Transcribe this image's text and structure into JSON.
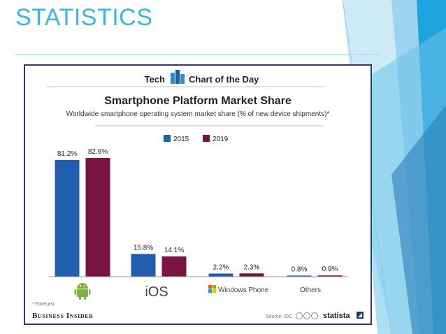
{
  "slide": {
    "title": "STATISTICS"
  },
  "chart_header": {
    "brand_left": "Tech",
    "brand_right": "Chart of the Day",
    "footnote": "* Forecast",
    "publisher": "Business Insider",
    "source": "Source: IDC",
    "logo": "statista"
  },
  "colors": {
    "s2015": "#1f5fae",
    "s2019": "#7b1440",
    "accent": "#38b6e6"
  },
  "chart_data": {
    "type": "bar",
    "title": "Smartphone Platform Market Share",
    "subtitle": "Worldwide smartphone operating system market share (% of new device shipments)*",
    "categories": [
      "",
      "iOS",
      "Windows Phone",
      "Others"
    ],
    "category_icons": [
      "android-icon",
      null,
      "windows-icon",
      null
    ],
    "series": [
      {
        "name": "2015",
        "values": [
          81.2,
          15.8,
          2.2,
          0.8
        ],
        "labels": [
          "81.2%",
          "15.8%",
          "2.2%",
          "0.8%"
        ]
      },
      {
        "name": "2019",
        "values": [
          82.6,
          14.1,
          2.3,
          0.9
        ],
        "labels": [
          "82.6%",
          "14.1%",
          "2.3%",
          "0.9%"
        ]
      }
    ],
    "ylim": [
      0,
      100
    ],
    "legend_position": "top-center",
    "grid": false
  }
}
